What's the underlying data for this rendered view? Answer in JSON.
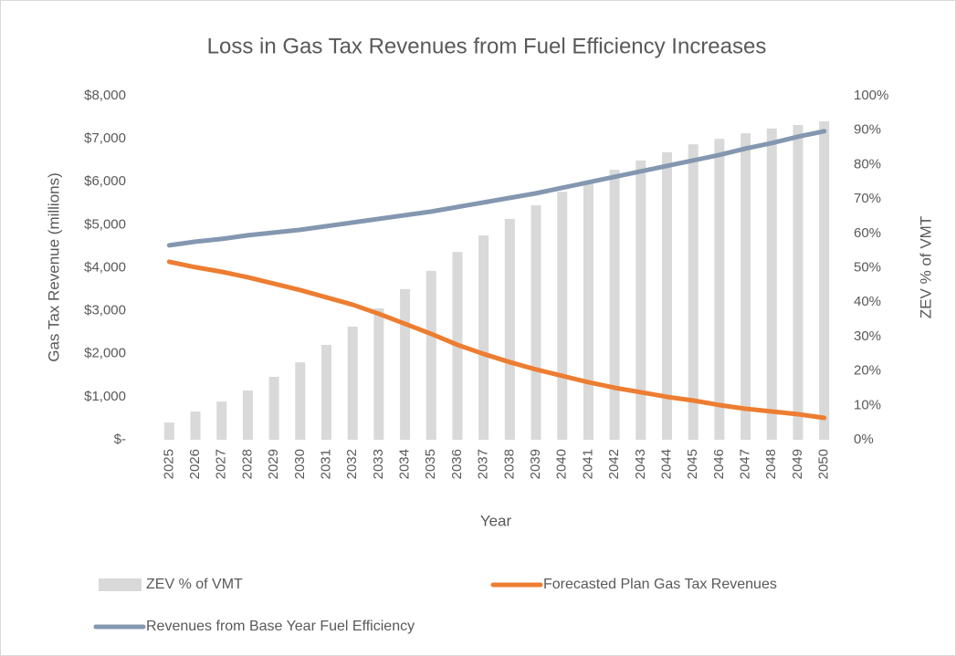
{
  "chart_data": {
    "type": "bar-line",
    "title": "Loss in Gas Tax Revenues from Fuel Efficiency Increases",
    "x_label": "Year",
    "y_label": "Gas Tax Revenue (millions)",
    "y2_label": "ZEV % of VMT",
    "categories": [
      "2025",
      "2026",
      "2027",
      "2028",
      "2029",
      "2030",
      "2031",
      "2032",
      "2033",
      "2034",
      "2035",
      "2036",
      "2037",
      "2038",
      "2039",
      "2040",
      "2041",
      "2042",
      "2043",
      "2044",
      "2045",
      "2046",
      "2047",
      "2048",
      "2049",
      "2050"
    ],
    "series": [
      {
        "name": "ZEV % of VMT",
        "type": "bar",
        "axis": "y2",
        "color": "#d9d9d9",
        "values": [
          5.0,
          8.2,
          11.1,
          14.3,
          18.3,
          22.5,
          27.6,
          32.9,
          38.2,
          43.8,
          49.1,
          54.6,
          59.4,
          64.2,
          68.2,
          72.1,
          75.1,
          78.5,
          81.2,
          83.6,
          85.9,
          87.5,
          89.1,
          90.5,
          91.5,
          92.6
        ]
      },
      {
        "name": "Forecasted Plan Gas Tax Revenues",
        "type": "line",
        "color": "#ed7d31",
        "values": [
          4140,
          4013,
          3907,
          3779,
          3631,
          3482,
          3312,
          3142,
          2930,
          2696,
          2463,
          2208,
          1996,
          1805,
          1635,
          1486,
          1338,
          1210,
          1104,
          998,
          913,
          807,
          722,
          658,
          594,
          510
        ]
      },
      {
        "name": "Revenues from Base Year Fuel Efficiency",
        "type": "line",
        "color": "#8497b0",
        "values": [
          4522,
          4607,
          4671,
          4756,
          4820,
          4883,
          4968,
          5053,
          5138,
          5223,
          5308,
          5414,
          5520,
          5626,
          5732,
          5860,
          5987,
          6115,
          6242,
          6369,
          6497,
          6624,
          6773,
          6900,
          7049,
          7176
        ]
      }
    ],
    "ylim": [
      0,
      8000
    ],
    "yticks": [
      {
        "value": 0,
        "label": "$-"
      },
      {
        "value": 1000,
        "label": "$1,000"
      },
      {
        "value": 2000,
        "label": "$2,000"
      },
      {
        "value": 3000,
        "label": "$3,000"
      },
      {
        "value": 4000,
        "label": "$4,000"
      },
      {
        "value": 5000,
        "label": "$5,000"
      },
      {
        "value": 6000,
        "label": "$6,000"
      },
      {
        "value": 7000,
        "label": "$7,000"
      },
      {
        "value": 8000,
        "label": "$8,000"
      }
    ],
    "y2lim": [
      0,
      100
    ],
    "y2ticks": [
      {
        "value": 0,
        "label": "0%"
      },
      {
        "value": 10,
        "label": "10%"
      },
      {
        "value": 20,
        "label": "20%"
      },
      {
        "value": 30,
        "label": "30%"
      },
      {
        "value": 40,
        "label": "40%"
      },
      {
        "value": 50,
        "label": "50%"
      },
      {
        "value": 60,
        "label": "60%"
      },
      {
        "value": 70,
        "label": "70%"
      },
      {
        "value": 80,
        "label": "80%"
      },
      {
        "value": 90,
        "label": "90%"
      },
      {
        "value": 100,
        "label": "100%"
      }
    ],
    "grid": false
  }
}
